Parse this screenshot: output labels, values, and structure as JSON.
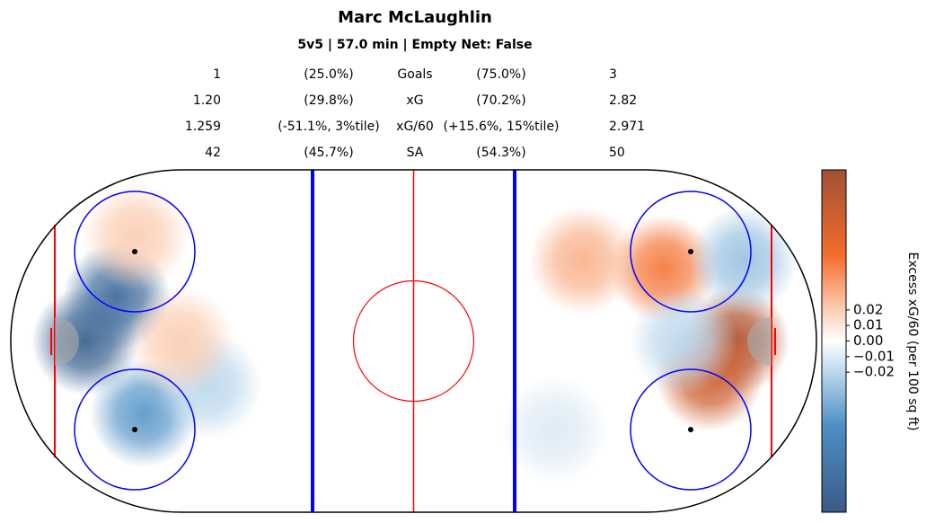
{
  "chart_data": {
    "type": "heatmap",
    "title": "Marc McLaughlin",
    "subtitle": "5v5 | 57.0 min | Empty Net: False",
    "stats": [
      [
        "1",
        "(25.0%)",
        "Goals",
        "(75.0%)",
        "3"
      ],
      [
        "1.20",
        "(29.8%)",
        "xG",
        "(70.2%)",
        "2.82"
      ],
      [
        "1.259",
        "(-51.1%, 3%tile)",
        "xG/60",
        "(+15.6%, 15%tile)",
        "2.971"
      ],
      [
        "42",
        "(45.7%)",
        "SA",
        "(54.3%)",
        "50"
      ]
    ],
    "x": [
      -81.5,
      -73.7,
      -67,
      -51,
      -58,
      -69,
      80,
      73.5,
      62,
      42,
      82,
      67,
      35
    ],
    "y": [
      0,
      -11,
      18,
      11,
      0,
      -26,
      0,
      9,
      -18,
      -20,
      -20,
      0,
      22
    ],
    "values": [
      -0.1,
      -0.09,
      -0.05,
      -0.02,
      0.02,
      0.02,
      0.1,
      0.08,
      0.05,
      0.03,
      -0.03,
      -0.02,
      -0.01
    ],
    "xlim": [
      -100,
      100
    ],
    "ylim": [
      -42.5,
      42.5
    ],
    "clim": [
      -0.11,
      0.11
    ],
    "cticks": [
      0.02,
      0.01,
      {
        "value": 0,
        "label": "0.00"
      },
      {
        "value": -0.01,
        "label": "−0.01"
      },
      {
        "value": -0.02,
        "label": "−0.02"
      }
    ],
    "colorbar_label": "Excess xG/60 (per 100 sq ft)"
  }
}
